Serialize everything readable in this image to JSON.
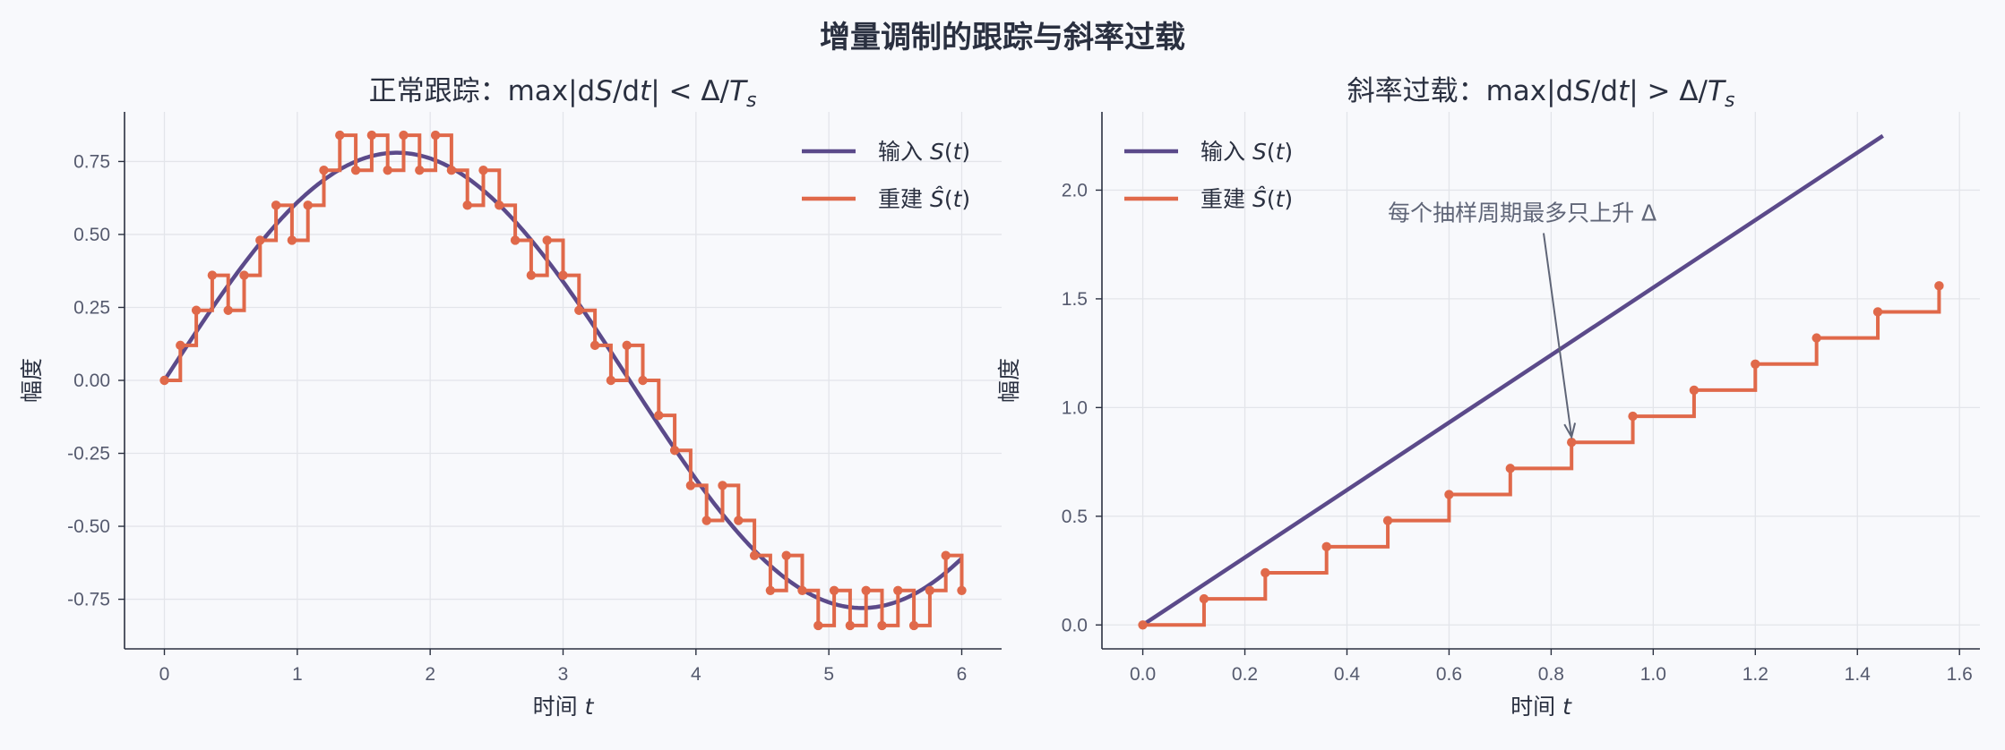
{
  "suptitle": "增量调制的跟踪与斜率过载",
  "colors": {
    "input": "#5b4a8a",
    "recon": "#e0694a",
    "grid": "#e3e5ea",
    "axis": "#2a3040",
    "annotation": "#5f6577"
  },
  "chart_data": [
    {
      "type": "line",
      "title_parts": {
        "prefix": "正常跟踪：max|d",
        "var1": "S",
        "mid": "/d",
        "var2": "t",
        "suffix": "| < Δ/",
        "var3": "T",
        "sub": "s"
      },
      "xlabel": {
        "text": "时间 ",
        "var": "t"
      },
      "ylabel": "幅度",
      "xlim": [
        -0.3,
        6.3
      ],
      "ylim": [
        -0.92,
        0.92
      ],
      "xticks": [
        0,
        1,
        2,
        3,
        4,
        5,
        6
      ],
      "xtick_labels": [
        "0",
        "1",
        "2",
        "3",
        "4",
        "5",
        "6"
      ],
      "yticks": [
        -0.75,
        -0.5,
        -0.25,
        0.0,
        0.25,
        0.5,
        0.75
      ],
      "ytick_labels": [
        "-0.75",
        "-0.50",
        "-0.25",
        "0.00",
        "0.25",
        "0.50",
        "0.75"
      ],
      "grid": true,
      "legend_position": "top-right",
      "legend": [
        {
          "label": "输入 ",
          "var": "S",
          "arg": "(t)",
          "hat": false
        },
        {
          "label": "重建 ",
          "var": "S",
          "arg": "(t)",
          "hat": true
        }
      ],
      "series": [
        {
          "name": "输入 S(t)",
          "kind": "sine",
          "amplitude": 0.78,
          "period": 7.0,
          "x_range": [
            0,
            6
          ]
        },
        {
          "name": "重建 Ŝ(t)",
          "kind": "staircase",
          "sample_period": 0.12,
          "x_start": 0,
          "values": [
            0,
            0.12,
            0.24,
            0.36,
            0.24,
            0.36,
            0.48,
            0.6,
            0.48,
            0.6,
            0.72,
            0.84,
            0.72,
            0.84,
            0.72,
            0.84,
            0.72,
            0.84,
            0.72,
            0.6,
            0.72,
            0.6,
            0.48,
            0.36,
            0.48,
            0.36,
            0.24,
            0.12,
            0,
            0.12,
            0,
            -0.12,
            -0.24,
            -0.36,
            -0.48,
            -0.36,
            -0.48,
            -0.6,
            -0.72,
            -0.6,
            -0.72,
            -0.84,
            -0.72,
            -0.84,
            -0.72,
            -0.84,
            -0.72,
            -0.84,
            -0.72,
            -0.6,
            -0.72
          ]
        }
      ]
    },
    {
      "type": "line",
      "title_parts": {
        "prefix": "斜率过载：max|d",
        "var1": "S",
        "mid": "/d",
        "var2": "t",
        "suffix": "| > Δ/",
        "var3": "T",
        "sub": "s"
      },
      "xlabel": {
        "text": "时间 ",
        "var": "t"
      },
      "ylabel": "幅度",
      "xlim": [
        -0.08,
        1.64
      ],
      "ylim": [
        -0.11,
        2.36
      ],
      "xticks": [
        0.0,
        0.2,
        0.4,
        0.6,
        0.8,
        1.0,
        1.2,
        1.4,
        1.6
      ],
      "xtick_labels": [
        "0.0",
        "0.2",
        "0.4",
        "0.6",
        "0.8",
        "1.0",
        "1.2",
        "1.4",
        "1.6"
      ],
      "yticks": [
        0.0,
        0.5,
        1.0,
        1.5,
        2.0
      ],
      "ytick_labels": [
        "0.0",
        "0.5",
        "1.0",
        "1.5",
        "2.0"
      ],
      "grid": true,
      "legend_position": "top-left",
      "legend": [
        {
          "label": "输入 ",
          "var": "S",
          "arg": "(t)",
          "hat": false
        },
        {
          "label": "重建 ",
          "var": "S",
          "arg": "(t)",
          "hat": true
        }
      ],
      "series": [
        {
          "name": "输入 S(t)",
          "kind": "line",
          "x": [
            0,
            1.45
          ],
          "y": [
            0,
            2.25
          ]
        },
        {
          "name": "重建 Ŝ(t)",
          "kind": "staircase",
          "sample_period": 0.12,
          "x_start": 0,
          "values": [
            0,
            0.12,
            0.24,
            0.36,
            0.48,
            0.6,
            0.72,
            0.84,
            0.96,
            1.08,
            1.2,
            1.32,
            1.44,
            1.56
          ]
        }
      ],
      "annotation": {
        "text": "每个抽样周期最多只上升 Δ",
        "text_at": [
          0.48,
          1.86
        ],
        "arrow_to": [
          0.84,
          0.865
        ]
      }
    }
  ]
}
